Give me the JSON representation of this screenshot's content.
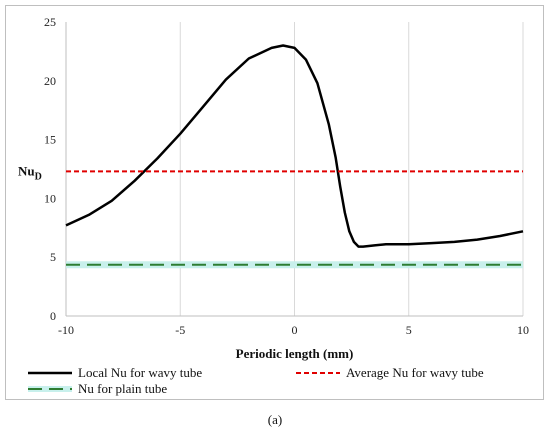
{
  "chart_data": {
    "type": "line",
    "xlabel": "Periodic length (mm)",
    "ylabel": "Nu",
    "ylabel_sub": "D",
    "xlim": [
      -10,
      10
    ],
    "ylim": [
      0,
      25
    ],
    "xticks": [
      -10,
      -5,
      0,
      5,
      10
    ],
    "yticks": [
      0,
      5,
      10,
      15,
      20,
      25
    ],
    "grid": "vertical",
    "legend_position": "bottom",
    "series": [
      {
        "name": "Local Nu for wavy tube",
        "color": "#000000",
        "style": "solid",
        "x": [
          -10,
          -9,
          -8,
          -7,
          -6,
          -5,
          -4,
          -3,
          -2,
          -1,
          -0.5,
          0,
          0.5,
          1,
          1.5,
          1.8,
          2,
          2.2,
          2.4,
          2.6,
          2.8,
          3,
          3.5,
          4,
          5,
          6,
          7,
          8,
          9,
          10
        ],
        "y": [
          7.7,
          8.6,
          9.8,
          11.5,
          13.4,
          15.5,
          17.8,
          20.1,
          21.9,
          22.8,
          23.0,
          22.8,
          21.8,
          19.8,
          16.3,
          13.5,
          11.0,
          8.8,
          7.2,
          6.3,
          5.9,
          5.9,
          6.0,
          6.1,
          6.1,
          6.2,
          6.3,
          6.5,
          6.8,
          7.2
        ]
      },
      {
        "name": "Average Nu for wavy tube",
        "color": "#e00000",
        "style": "dashed",
        "x": [
          -10,
          10
        ],
        "y": [
          12.3,
          12.3
        ]
      },
      {
        "name": "Nu for plain tube",
        "color": "#2e7d32",
        "style": "long-dash",
        "x": [
          -10,
          10
        ],
        "y": [
          4.36,
          4.36
        ]
      }
    ]
  },
  "caption": "(a)"
}
